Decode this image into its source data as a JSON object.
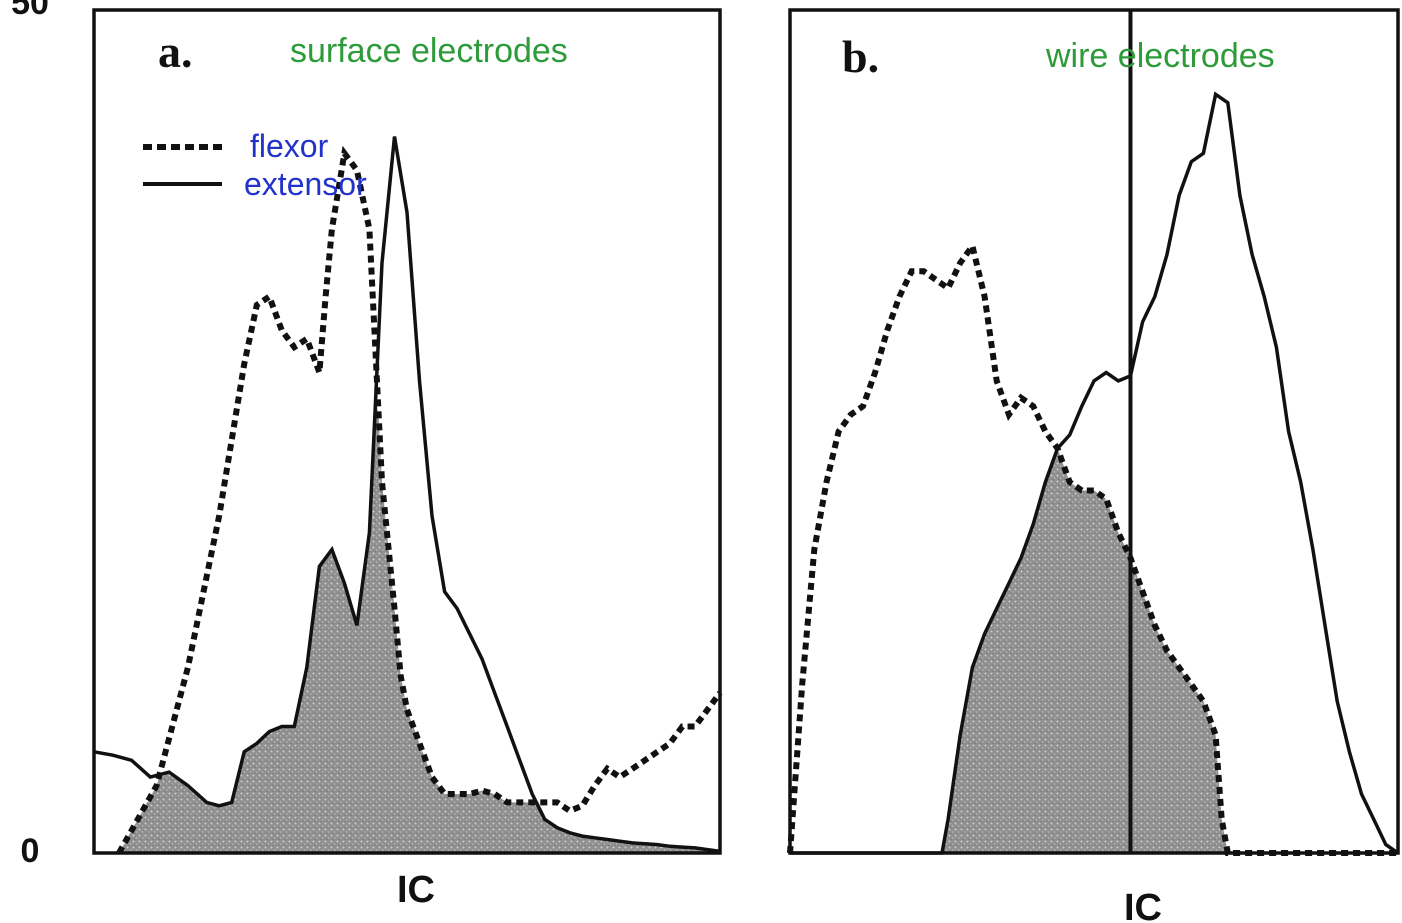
{
  "colors": {
    "title": "#2e9b3a",
    "legend": "#2233cc",
    "ink": "#111111",
    "fill": "#9a9a9a"
  },
  "chart_data": [
    {
      "type": "line",
      "panel": "a.",
      "title": "surface electrodes",
      "xlabel": "IC",
      "ylabel": "",
      "ylim": [
        0,
        50
      ],
      "yticks": [
        "0",
        "50"
      ],
      "xlim": [
        0,
        100
      ],
      "legend": [
        {
          "label": "flexor",
          "style": "dashed"
        },
        {
          "label": "extensor",
          "style": "solid"
        }
      ],
      "shading": "overlap of flexor and extensor (shaded grey)",
      "series": [
        {
          "name": "flexor",
          "style": "dashed",
          "x": [
            4,
            10,
            15,
            20,
            24,
            26,
            28,
            30,
            32,
            34,
            36,
            37,
            38,
            40,
            42,
            44,
            46,
            48,
            49,
            50,
            52,
            54,
            56,
            58,
            60,
            62,
            64,
            66,
            68,
            70,
            72,
            74,
            76,
            78,
            80,
            82,
            84,
            86,
            88,
            90,
            92,
            94,
            96,
            98,
            100
          ],
          "y": [
            0,
            4,
            11,
            20,
            29,
            32.5,
            33,
            31,
            30,
            30.5,
            28.5,
            33,
            37,
            41.5,
            40.5,
            37,
            22,
            14.5,
            10.5,
            8.5,
            6.5,
            4.5,
            3.5,
            3.5,
            3.5,
            3.7,
            3.5,
            3,
            3,
            3,
            3,
            3,
            2.5,
            2.8,
            4,
            5,
            4.5,
            5,
            5.5,
            6,
            6.5,
            7.5,
            7.5,
            8.5,
            9.5
          ]
        },
        {
          "name": "extensor",
          "style": "solid",
          "x": [
            0,
            3,
            6,
            9,
            12,
            15,
            18,
            20,
            22,
            24,
            26,
            28,
            30,
            32,
            34,
            36,
            38,
            40,
            42,
            44,
            46,
            48,
            50,
            52,
            54,
            56,
            58,
            60,
            62,
            64,
            66,
            68,
            70,
            72,
            74,
            76,
            78,
            80,
            82,
            84,
            86,
            88,
            90,
            92,
            94,
            96,
            98,
            100
          ],
          "y": [
            6,
            5.8,
            5.5,
            4.5,
            4.8,
            4,
            3,
            2.8,
            3,
            6,
            6.5,
            7.2,
            7.5,
            7.5,
            11,
            17,
            18,
            16,
            13.5,
            19,
            35,
            42.5,
            38,
            28,
            20,
            15.5,
            14.5,
            13,
            11.5,
            9.5,
            7.5,
            5.5,
            3.5,
            2,
            1.5,
            1.2,
            1,
            0.9,
            0.8,
            0.7,
            0.6,
            0.55,
            0.5,
            0.4,
            0.35,
            0.3,
            0.2,
            0.1
          ]
        }
      ]
    },
    {
      "type": "line",
      "panel": "b.",
      "title": "wire electrodes",
      "xlabel": "IC",
      "ylabel": "",
      "ylim": [
        0,
        50
      ],
      "xlim": [
        0,
        100
      ],
      "marker_line_x": 56,
      "shading": "overlap of flexor and extensor (shaded grey)",
      "series": [
        {
          "name": "flexor",
          "style": "dashed",
          "x": [
            0,
            2,
            4,
            6,
            8,
            10,
            12,
            14,
            16,
            18,
            20,
            22,
            24,
            26,
            28,
            30,
            32,
            34,
            36,
            38,
            40,
            42,
            44,
            46,
            48,
            50,
            52,
            54,
            56,
            58,
            60,
            62,
            64,
            66,
            68,
            70,
            71,
            72,
            100
          ],
          "y": [
            0,
            10,
            18,
            22,
            25,
            26,
            26.5,
            28.5,
            31,
            33,
            34.5,
            34.5,
            34,
            33.5,
            35,
            36,
            33,
            28,
            26,
            27,
            26.5,
            25,
            24,
            22,
            21.5,
            21.5,
            21,
            19,
            17.5,
            15.5,
            13.5,
            12,
            11,
            10,
            9,
            7,
            2,
            0,
            0
          ]
        },
        {
          "name": "extensor",
          "style": "solid",
          "x": [
            0,
            20,
            25,
            26,
            28,
            30,
            32,
            34,
            36,
            38,
            40,
            42,
            44,
            46,
            48,
            50,
            52,
            54,
            56,
            58,
            60,
            62,
            64,
            66,
            68,
            70,
            72,
            74,
            76,
            78,
            80,
            82,
            84,
            86,
            88,
            90,
            92,
            94,
            96,
            98,
            100
          ],
          "y": [
            0,
            0,
            0,
            2,
            7,
            11,
            13,
            14.5,
            16,
            17.5,
            19.5,
            22,
            24,
            24.8,
            26.5,
            28,
            28.5,
            28,
            28.3,
            31.5,
            33,
            35.5,
            39,
            41,
            41.5,
            45,
            44.5,
            39,
            35.5,
            33,
            30,
            25,
            22,
            18,
            13.5,
            9,
            6,
            3.5,
            2,
            0.5,
            0
          ]
        }
      ]
    }
  ]
}
